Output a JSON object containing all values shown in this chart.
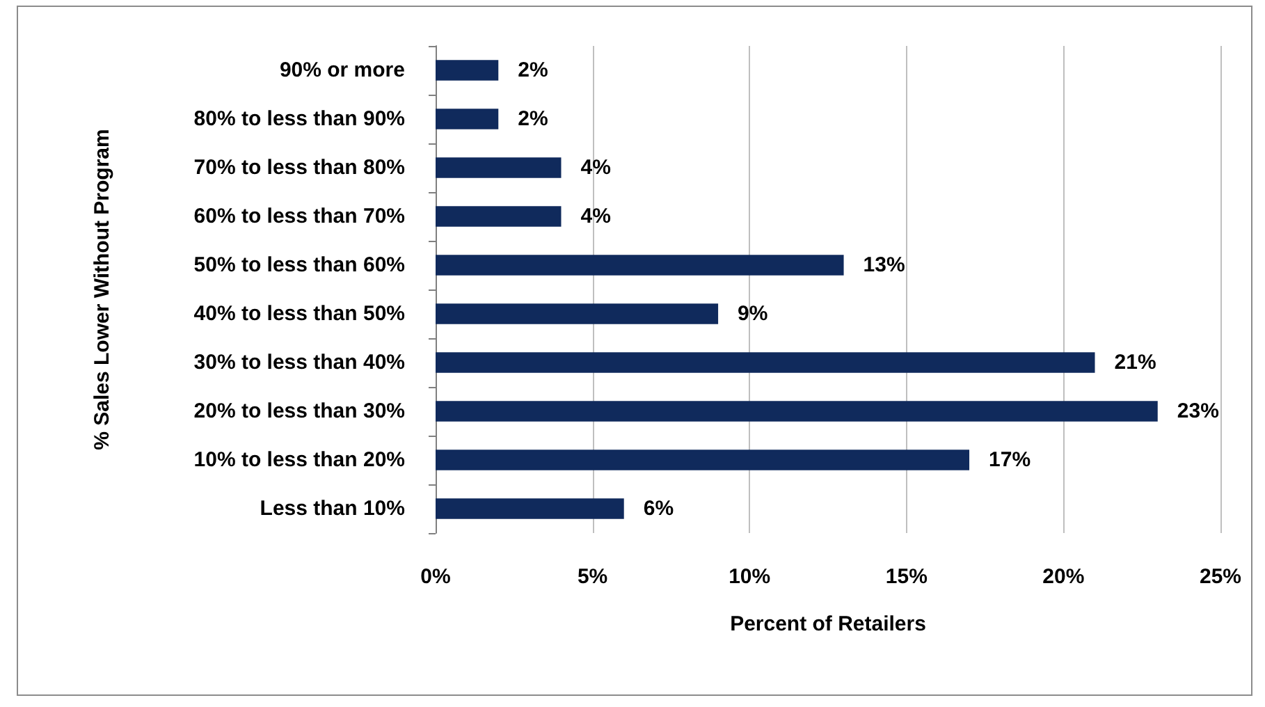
{
  "chart_data": {
    "type": "bar",
    "orientation": "horizontal",
    "xlabel": "Percent of Retailers",
    "ylabel": "% Sales Lower Without Program",
    "categories": [
      "90% or more",
      "80% to less than 90%",
      "70% to less than 80%",
      "60% to less than 70%",
      "50% to less than 60%",
      "40% to less than 50%",
      "30% to less than 40%",
      "20% to less than 30%",
      "10% to less than 20%",
      "Less than 10%"
    ],
    "values": [
      2,
      2,
      4,
      4,
      13,
      9,
      21,
      23,
      17,
      6
    ],
    "value_labels": [
      "2%",
      "2%",
      "4%",
      "4%",
      "13%",
      "9%",
      "21%",
      "23%",
      "17%",
      "6%"
    ],
    "color": "#102a5c",
    "xlim": [
      0,
      25
    ],
    "xticks": [
      {
        "value": 0,
        "label": "0%"
      },
      {
        "value": 5,
        "label": "5%"
      },
      {
        "value": 10,
        "label": "10%"
      },
      {
        "value": 15,
        "label": "15%"
      },
      {
        "value": 20,
        "label": "20%"
      },
      {
        "value": 25,
        "label": "25%"
      }
    ],
    "grid": "x"
  }
}
